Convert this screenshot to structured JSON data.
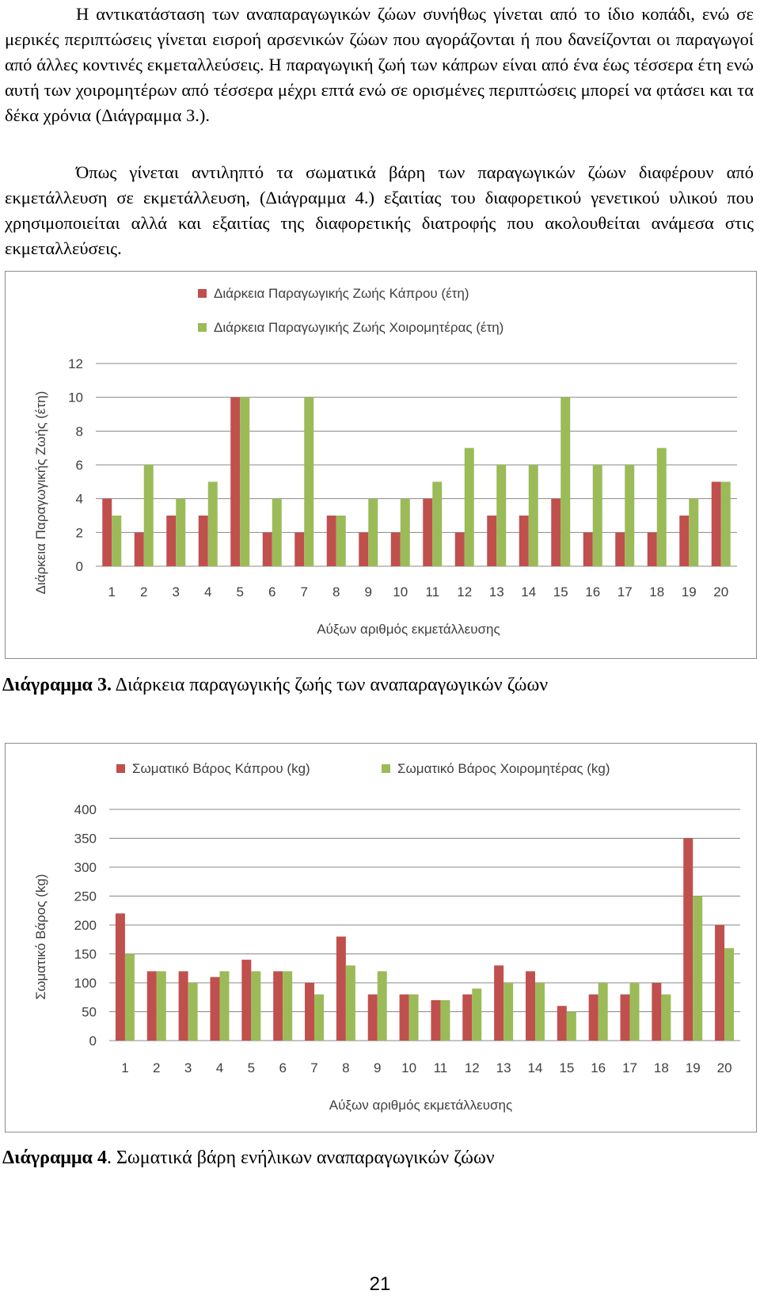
{
  "text": {
    "paragraph1": "Η αντικατάσταση των αναπαραγωγικών ζώων συνήθως γίνεται από το ίδιο κοπάδι, ενώ σε μερικές περιπτώσεις γίνεται εισροή αρσενικών ζώων που αγοράζονται ή που δανείζονται οι παραγωγοί από άλλες κοντινές εκμεταλλεύσεις. Η παραγωγική ζωή των κάπρων είναι από ένα έως τέσσερα έτη ενώ αυτή των χοιρομητέρων από τέσσερα μέχρι επτά ενώ σε ορισμένες περιπτώσεις μπορεί να φτάσει και τα δέκα χρόνια (Διάγραμμα 3.).",
    "paragraph2": "Όπως γίνεται αντιληπτό τα σωματικά βάρη των παραγωγικών ζώων διαφέρουν από εκμετάλλευση σε εκμετάλλευση, (Διάγραμμα 4.) εξαιτίας του διαφορετικού γενετικού υλικού που χρησιμοποιείται αλλά και εξαιτίας της διαφορετικής διατροφής που ακολουθείται ανάμεσα στις εκμεταλλεύσεις.",
    "caption1_bold": "Διάγραμμα 3.",
    "caption1_rest": " Διάρκεια παραγωγικής ζωής των αναπαραγωγικών ζώων",
    "caption2_bold": "Διάγραμμα 4",
    "caption2_rest": ". Σωματικά βάρη ενήλικων αναπαραγωγικών ζώων",
    "page_number": "21"
  },
  "colors": {
    "boar": "#c0504d",
    "sow": "#9bbb59",
    "grid": "#888888",
    "axis_text": "#404040"
  },
  "chart_data": [
    {
      "type": "bar",
      "categories": [
        "1",
        "2",
        "3",
        "4",
        "5",
        "6",
        "7",
        "8",
        "9",
        "10",
        "11",
        "12",
        "13",
        "14",
        "15",
        "16",
        "17",
        "18",
        "19",
        "20"
      ],
      "series": [
        {
          "name": "Διάρκεια Παραγωγικής Ζωής Κάπρου (έτη)",
          "values": [
            4,
            2,
            3,
            3,
            10,
            2,
            2,
            3,
            2,
            2,
            4,
            2,
            3,
            3,
            4,
            2,
            2,
            2,
            3,
            5
          ]
        },
        {
          "name": "Διάρκεια Παραγωγικής Ζωής Χοιρομητέρας (έτη)",
          "values": [
            3,
            6,
            4,
            5,
            10,
            4,
            10,
            3,
            4,
            4,
            5,
            7,
            6,
            6,
            10,
            6,
            6,
            7,
            4,
            5
          ]
        }
      ],
      "xlabel": "Αύξων αριθμός εκμετάλλευσης",
      "ylabel": "Διάρκεια Παραγωγικής Ζωής (έτη)",
      "ylim": [
        0,
        12
      ],
      "yticks": [
        0,
        2,
        4,
        6,
        8,
        10,
        12
      ],
      "grid": true,
      "legend": "top-center"
    },
    {
      "type": "bar",
      "categories": [
        "1",
        "2",
        "3",
        "4",
        "5",
        "6",
        "7",
        "8",
        "9",
        "10",
        "11",
        "12",
        "13",
        "14",
        "15",
        "16",
        "17",
        "18",
        "19",
        "20"
      ],
      "series": [
        {
          "name": "Σωματικό Βάρος Κάπρου (kg)",
          "values": [
            220,
            120,
            120,
            110,
            140,
            120,
            100,
            180,
            80,
            80,
            70,
            80,
            130,
            120,
            60,
            80,
            80,
            100,
            350,
            200
          ]
        },
        {
          "name": "Σωματικό Βάρος Χοιρομητέρας (kg)",
          "values": [
            150,
            120,
            100,
            120,
            120,
            120,
            80,
            130,
            120,
            80,
            70,
            90,
            100,
            100,
            50,
            100,
            100,
            80,
            250,
            160
          ]
        }
      ],
      "xlabel": "Αύξων αριθμός εκμετάλλευσης",
      "ylabel": "Σωματικό Βάρος (kg)",
      "ylim": [
        0,
        400
      ],
      "yticks": [
        0,
        50,
        100,
        150,
        200,
        250,
        300,
        350,
        400
      ],
      "grid": true,
      "legend": "top-center"
    }
  ]
}
